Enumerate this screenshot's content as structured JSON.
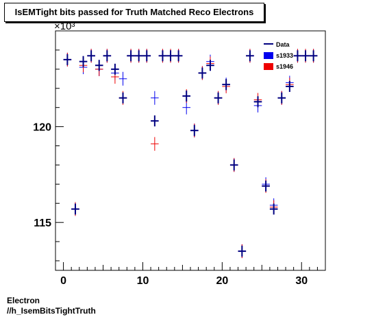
{
  "chart_data": {
    "type": "scatter",
    "title": "IsEMTight bits passed for Truth Matched Reco Electrons",
    "y_multiplier": "×10³",
    "xlabel": "",
    "ylabel": "",
    "xlim": [
      -1,
      33
    ],
    "ylim": [
      112.5,
      125
    ],
    "x_ticks": [
      0,
      10,
      20,
      30
    ],
    "y_ticks": [
      115,
      120
    ],
    "legend": {
      "position": "top-right",
      "entries": [
        "Data",
        "s1933",
        "s1946"
      ]
    },
    "series": [
      {
        "name": "Data",
        "color": "#000080",
        "x": [
          0,
          1,
          2,
          3,
          4,
          5,
          6,
          7,
          8,
          9,
          10,
          11,
          12,
          13,
          14,
          15,
          16,
          17,
          18,
          19,
          20,
          21,
          22,
          23,
          24,
          25,
          26,
          27,
          28,
          29,
          30,
          31
        ],
        "y": [
          123.5,
          115.7,
          123.4,
          123.7,
          123.2,
          123.7,
          123.0,
          121.5,
          123.7,
          123.7,
          123.7,
          120.3,
          123.7,
          123.7,
          123.7,
          121.6,
          119.8,
          122.8,
          123.2,
          121.5,
          122.2,
          118.0,
          113.5,
          123.7,
          121.3,
          116.9,
          115.7,
          121.5,
          122.1,
          123.7,
          123.7,
          123.7
        ]
      },
      {
        "name": "s1933",
        "color": "#0000ee",
        "x": [
          0,
          1,
          2,
          3,
          4,
          5,
          6,
          7,
          8,
          9,
          10,
          11,
          12,
          13,
          14,
          15,
          16,
          17,
          18,
          19,
          20,
          21,
          22,
          23,
          24,
          25,
          26,
          27,
          28,
          29,
          30,
          31
        ],
        "y": [
          123.5,
          115.7,
          123.1,
          123.7,
          123.0,
          123.7,
          122.8,
          122.5,
          123.7,
          123.7,
          123.7,
          121.5,
          123.7,
          123.7,
          123.7,
          121.0,
          119.8,
          122.8,
          123.4,
          121.5,
          122.2,
          118.0,
          113.5,
          123.7,
          121.1,
          117.0,
          115.9,
          121.5,
          122.3,
          123.7,
          123.7,
          123.7
        ]
      },
      {
        "name": "s1946",
        "color": "#ee0000",
        "x": [
          0,
          1,
          2,
          3,
          4,
          5,
          6,
          7,
          8,
          9,
          10,
          11,
          12,
          13,
          14,
          15,
          16,
          17,
          18,
          19,
          20,
          21,
          22,
          23,
          24,
          25,
          26,
          27,
          28,
          29,
          30,
          31
        ],
        "y": [
          123.5,
          115.7,
          123.2,
          123.7,
          123.0,
          123.7,
          122.6,
          121.5,
          123.7,
          123.7,
          123.7,
          119.1,
          123.7,
          123.7,
          123.7,
          121.6,
          119.8,
          122.8,
          123.3,
          121.5,
          122.1,
          118.0,
          113.5,
          123.7,
          121.4,
          116.9,
          115.8,
          121.5,
          122.2,
          123.7,
          123.7,
          123.7
        ]
      }
    ]
  },
  "footer": {
    "line1": "Electron",
    "line2": "//h_IsemBitsTightTruth"
  }
}
